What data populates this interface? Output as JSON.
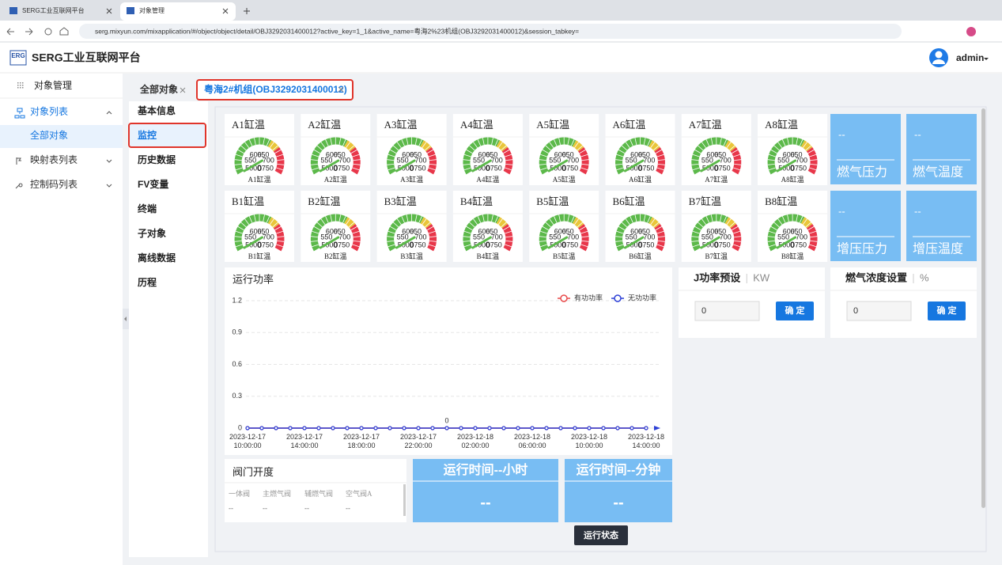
{
  "browser": {
    "tabs": [
      "SERG工业互联网平台",
      "对象管理"
    ],
    "url": "serg.mixyun.com/mixapplication/#/object/object/detail/OBJ3292031400012?active_key=1_1&active_name=粤海2%23机组(OBJ3292031400012)&session_tabkey="
  },
  "header": {
    "logo": "ERG",
    "title": "SERG工业互联网平台",
    "user": "admin"
  },
  "sidebar": {
    "section": "对象管理",
    "items": [
      {
        "label": "对象列表",
        "children": [
          "全部对象"
        ]
      },
      {
        "label": "映射表列表"
      },
      {
        "label": "控制码列表"
      }
    ]
  },
  "tabs": [
    "全部对象",
    "粤海2#机组(OBJ3292031400012)"
  ],
  "subnav": [
    "基本信息",
    "监控",
    "历史数据",
    "FV变量",
    "终端",
    "子对象",
    "离线数据",
    "历程"
  ],
  "gauge_range": [
    500,
    750
  ],
  "gauge_ticks": [
    500,
    550,
    600,
    650,
    700,
    750
  ],
  "gauges": [
    {
      "title": "A1缸温",
      "label": "A1缸温",
      "value": 0
    },
    {
      "title": "A2缸温",
      "label": "A2缸温",
      "value": 0
    },
    {
      "title": "A3缸温",
      "label": "A3缸温",
      "value": 0
    },
    {
      "title": "A4缸温",
      "label": "A4缸温",
      "value": 0
    },
    {
      "title": "A5缸温",
      "label": "A5缸温",
      "value": 0
    },
    {
      "title": "A6缸温",
      "label": "A6缸温",
      "value": 0
    },
    {
      "title": "A7缸温",
      "label": "A7缸温",
      "value": 0
    },
    {
      "title": "A8缸温",
      "label": "A8缸温",
      "value": 0
    },
    {
      "title": "B1缸温",
      "label": "B1缸温",
      "value": 0
    },
    {
      "title": "B2缸温",
      "label": "B2缸温",
      "value": 0
    },
    {
      "title": "B3缸温",
      "label": "B3缸温",
      "value": 0
    },
    {
      "title": "B4缸温",
      "label": "B4缸温",
      "value": 0
    },
    {
      "title": "B5缸温",
      "label": "B5缸温",
      "value": 0
    },
    {
      "title": "B6缸温",
      "label": "B6缸温",
      "value": 0
    },
    {
      "title": "B7缸温",
      "label": "B7缸温",
      "value": 0
    },
    {
      "title": "B8缸温",
      "label": "B8缸温",
      "value": 0
    }
  ],
  "side_cards": [
    {
      "label": "燃气压力",
      "value": "--"
    },
    {
      "label": "燃气温度",
      "value": "--"
    },
    {
      "label": "增压压力",
      "value": "--"
    },
    {
      "label": "增压温度",
      "value": "--"
    }
  ],
  "chart_data": {
    "type": "line",
    "title": "运行功率",
    "categories": [
      "2023-12-17 10:00:00",
      null,
      null,
      null,
      "2023-12-17 14:00:00",
      null,
      null,
      null,
      "2023-12-17 18:00:00",
      null,
      null,
      null,
      "2023-12-17 22:00:00",
      null,
      null,
      null,
      "2023-12-18 02:00:00",
      null,
      null,
      null,
      "2023-12-18 06:00:00",
      null,
      null,
      null,
      "2023-12-18 10:00:00",
      null,
      null,
      null,
      "2023-12-18 14:00:00"
    ],
    "series": [
      {
        "name": "有功功率",
        "color": "#e84a4a",
        "values": [
          0,
          0,
          0,
          0,
          0,
          0,
          0,
          0,
          0,
          0,
          0,
          0,
          0,
          0,
          0,
          0,
          0,
          0,
          0,
          0,
          0,
          0,
          0,
          0,
          0,
          0,
          0,
          0,
          0
        ]
      },
      {
        "name": "无功功率",
        "color": "#2c3fd6",
        "values": [
          0,
          0,
          0,
          0,
          0,
          0,
          0,
          0,
          0,
          0,
          0,
          0,
          0,
          0,
          0,
          0,
          0,
          0,
          0,
          0,
          0,
          0,
          0,
          0,
          0,
          0,
          0,
          0,
          0
        ]
      }
    ],
    "annotations": [
      {
        "text": "0",
        "x": 14
      }
    ],
    "ylim": [
      0,
      1.2
    ],
    "yticks": [
      0,
      0.3,
      0.6,
      0.9,
      1.2
    ],
    "grid": true,
    "legend": "top-right"
  },
  "settings": [
    {
      "title": "J功率预设",
      "unit": "KW",
      "input": "0",
      "button": "确 定"
    },
    {
      "title": "燃气浓度设置",
      "unit": "%",
      "input": "0",
      "button": "确 定"
    }
  ],
  "valve": {
    "title": "阀门开度",
    "columns": [
      "一体阀",
      "主燃气阀",
      "辅燃气阀",
      "空气阀A"
    ],
    "values": [
      "--",
      "--",
      "--",
      "--"
    ]
  },
  "runtime_cards": [
    {
      "title": "运行时间--小时",
      "value": "--"
    },
    {
      "title": "运行时间--分钟",
      "value": "--"
    }
  ],
  "status_button": "运行状态"
}
